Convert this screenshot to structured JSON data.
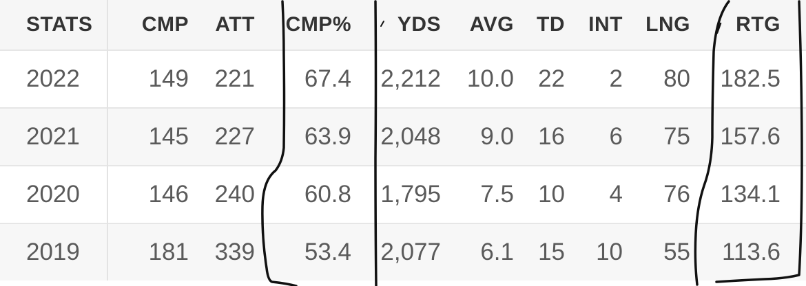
{
  "table": {
    "headers": {
      "season": "STATS",
      "cmp": "CMP",
      "att": "ATT",
      "cmp_pct": "CMP%",
      "yds": "YDS",
      "avg": "AVG",
      "td": "TD",
      "int": "INT",
      "lng": "LNG",
      "rtg": "RTG"
    },
    "rows": [
      {
        "season": "2022",
        "cmp": "149",
        "att": "221",
        "cmp_pct": "67.4",
        "yds": "2,212",
        "avg": "10.0",
        "td": "22",
        "int": "2",
        "lng": "80",
        "rtg": "182.5"
      },
      {
        "season": "2021",
        "cmp": "145",
        "att": "227",
        "cmp_pct": "63.9",
        "yds": "2,048",
        "avg": "9.0",
        "td": "16",
        "int": "6",
        "lng": "75",
        "rtg": "157.6"
      },
      {
        "season": "2020",
        "cmp": "146",
        "att": "240",
        "cmp_pct": "60.8",
        "yds": "1,795",
        "avg": "7.5",
        "td": "10",
        "int": "4",
        "lng": "76",
        "rtg": "134.1"
      },
      {
        "season": "2019",
        "cmp": "181",
        "att": "339",
        "cmp_pct": "53.4",
        "yds": "2,077",
        "avg": "6.1",
        "td": "15",
        "int": "10",
        "lng": "55",
        "rtg": "113.6"
      }
    ]
  },
  "annotation": {
    "ink_color": "#111111"
  }
}
